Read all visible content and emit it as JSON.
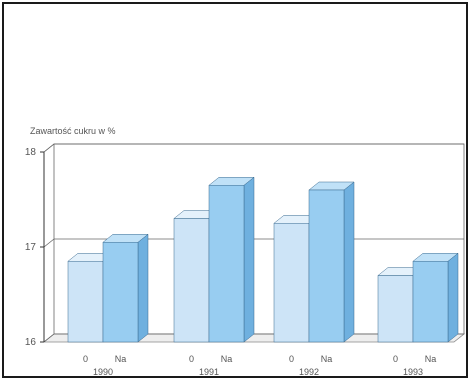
{
  "chart_data": {
    "type": "bar",
    "title": "",
    "ylabel": "Zawartość cukru w %",
    "xlabel": "",
    "ylim": [
      16,
      18
    ],
    "yticks": [
      16,
      17,
      18
    ],
    "grid": true,
    "three_d": true,
    "groups": [
      {
        "year": "1990",
        "bars": [
          {
            "label": "0",
            "value": 16.85
          },
          {
            "label": "Na",
            "value": 17.05
          }
        ]
      },
      {
        "year": "1991",
        "bars": [
          {
            "label": "0",
            "value": 17.3
          },
          {
            "label": "Na",
            "value": 17.65
          }
        ]
      },
      {
        "year": "1992",
        "bars": [
          {
            "label": "0",
            "value": 17.25
          },
          {
            "label": "Na",
            "value": 17.6
          }
        ]
      },
      {
        "year": "1993",
        "bars": [
          {
            "label": "0",
            "value": 16.7
          },
          {
            "label": "Na",
            "value": 16.85
          }
        ]
      }
    ],
    "colors": {
      "0": {
        "front": "#cde4f7",
        "side": "#a8c9e8",
        "top": "#e4f1fb"
      },
      "Na": {
        "front": "#98cdf1",
        "side": "#6fb0df",
        "top": "#c0e1f7"
      }
    }
  }
}
